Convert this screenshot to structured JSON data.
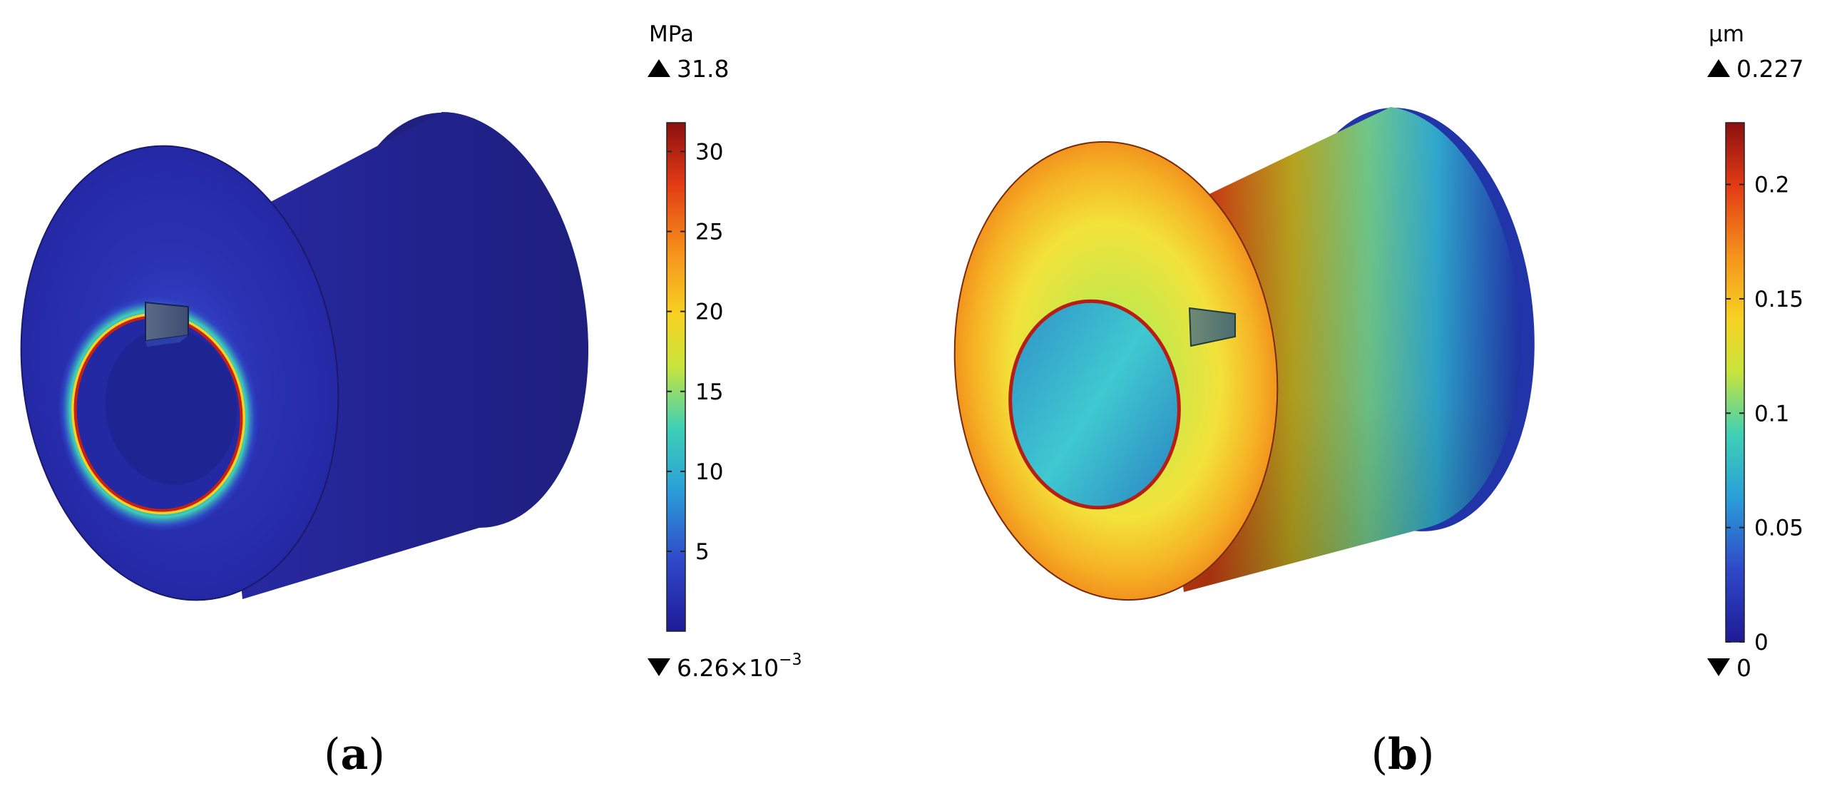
{
  "panels": [
    {
      "id": "a",
      "caption": "a",
      "field": "stress",
      "colorbar": {
        "unit": "MPa",
        "max_label": "31.8",
        "min_mantissa": "6.26×10",
        "min_exponent": "−3",
        "ticks": [
          "5",
          "10",
          "15",
          "20",
          "25",
          "30"
        ],
        "range": [
          0.00626,
          31.8
        ],
        "tick_values": [
          5,
          10,
          15,
          20,
          25,
          30
        ]
      }
    },
    {
      "id": "b",
      "caption": "b",
      "field": "displacement",
      "colorbar": {
        "unit": "µm",
        "max_label": "0.227",
        "min_label": "0",
        "ticks": [
          "0",
          "0.05",
          "0.1",
          "0.15",
          "0.2"
        ],
        "range": [
          0,
          0.227
        ],
        "tick_values": [
          0,
          0.05,
          0.1,
          0.15,
          0.2
        ]
      }
    }
  ],
  "colormap": [
    "#1e1a96",
    "#2f49c9",
    "#2aa0d8",
    "#3fd0b6",
    "#c8e43c",
    "#f7d223",
    "#f6951c",
    "#e23a14",
    "#8a1010"
  ],
  "face_colors": {
    "a_body": "#24249a",
    "b_face": "#f2b21e"
  }
}
